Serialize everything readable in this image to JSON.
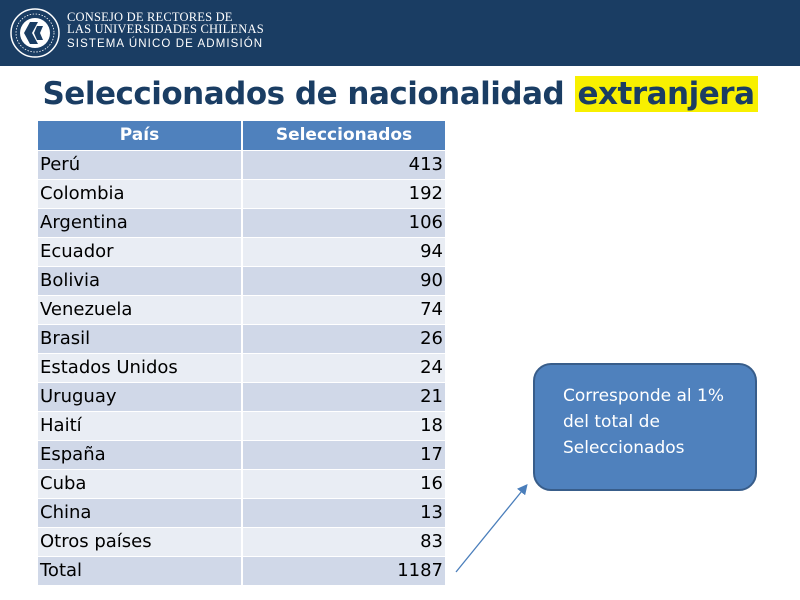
{
  "header": {
    "org_line1": "CONSEJO DE RECTORES DE",
    "org_line2": "LAS UNIVERSIDADES CHILENAS",
    "org_line3": "SISTEMA ÚNICO DE ADMISIÓN",
    "logo_icon": "cruch-seal-logo"
  },
  "title": {
    "part1": "Seleccionados de nacionalidad ",
    "highlight": "extranjera",
    "highlight_color": "#f8f000"
  },
  "table": {
    "headers": [
      "País",
      "Seleccionados"
    ],
    "rows": [
      [
        "Perú",
        "413"
      ],
      [
        "Colombia",
        "192"
      ],
      [
        "Argentina",
        "106"
      ],
      [
        "Ecuador",
        "94"
      ],
      [
        "Bolivia",
        "90"
      ],
      [
        "Venezuela",
        "74"
      ],
      [
        "Brasil",
        "26"
      ],
      [
        "Estados Unidos",
        "24"
      ],
      [
        "Uruguay",
        "21"
      ],
      [
        "Haití",
        "18"
      ],
      [
        "España",
        "17"
      ],
      [
        "Cuba",
        "16"
      ],
      [
        "China",
        "13"
      ],
      [
        "Otros países",
        "83"
      ],
      [
        "Total",
        "1187"
      ]
    ]
  },
  "callout": {
    "line1": "Corresponde al 1%",
    "line2": "del total de",
    "line3": "Seleccionados"
  },
  "colors": {
    "header_bar": "#1a3d63",
    "table_header": "#4f81bd",
    "row_odd": "#d0d8e8",
    "row_even": "#e9edf4",
    "callout_fill": "#4f81bd"
  }
}
